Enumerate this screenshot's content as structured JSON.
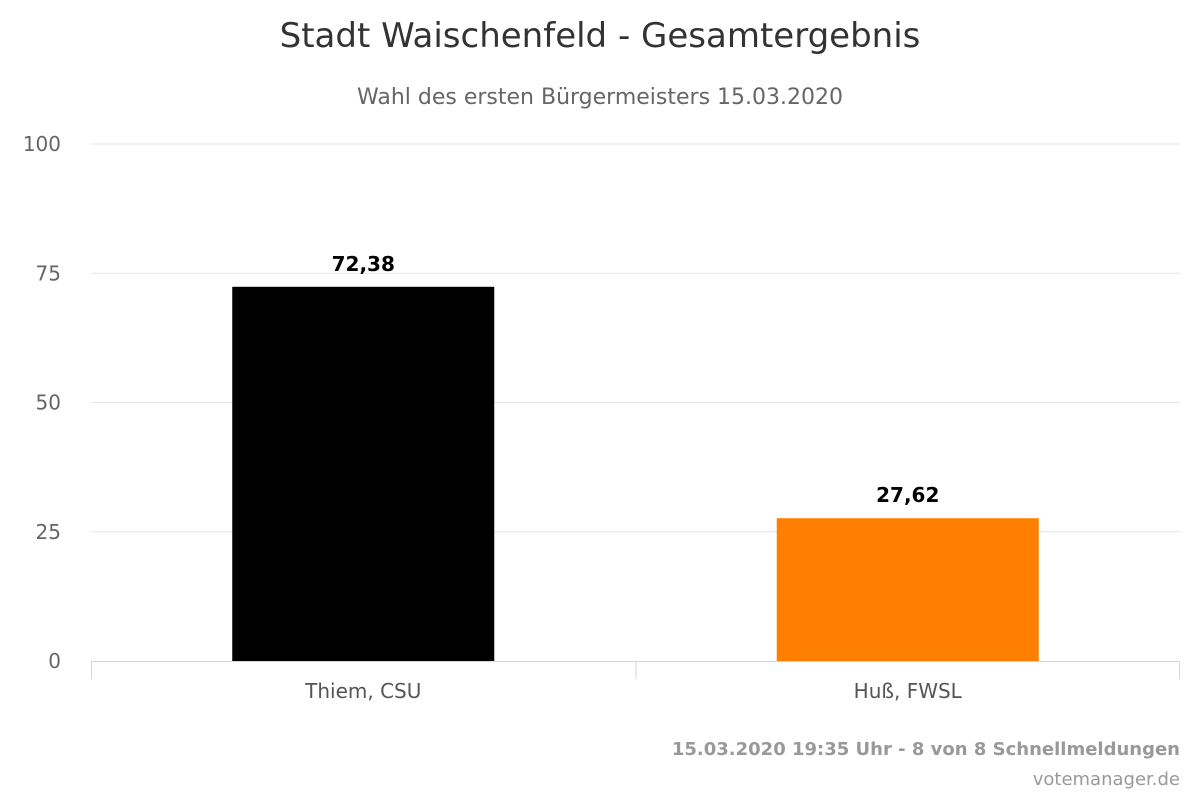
{
  "chart_data": {
    "type": "bar",
    "title": "Stadt Waischenfeld - Gesamtergebnis",
    "subtitle": "Wahl des ersten Bürgermeisters 15.03.2020",
    "categories": [
      "Thiem, CSU",
      "Huß, FWSL"
    ],
    "values": [
      72.38,
      27.62
    ],
    "value_labels": [
      "72,38",
      "27,62"
    ],
    "colors": [
      "#000000",
      "#ff8000"
    ],
    "ylim": [
      0,
      100
    ],
    "yticks": [
      0,
      25,
      50,
      75,
      100
    ],
    "grid": true,
    "legend": "none"
  },
  "footer": {
    "timestamp": "15.03.2020 19:35 Uhr - 8 von 8 Schnellmeldungen",
    "credit": "votemanager.de"
  }
}
